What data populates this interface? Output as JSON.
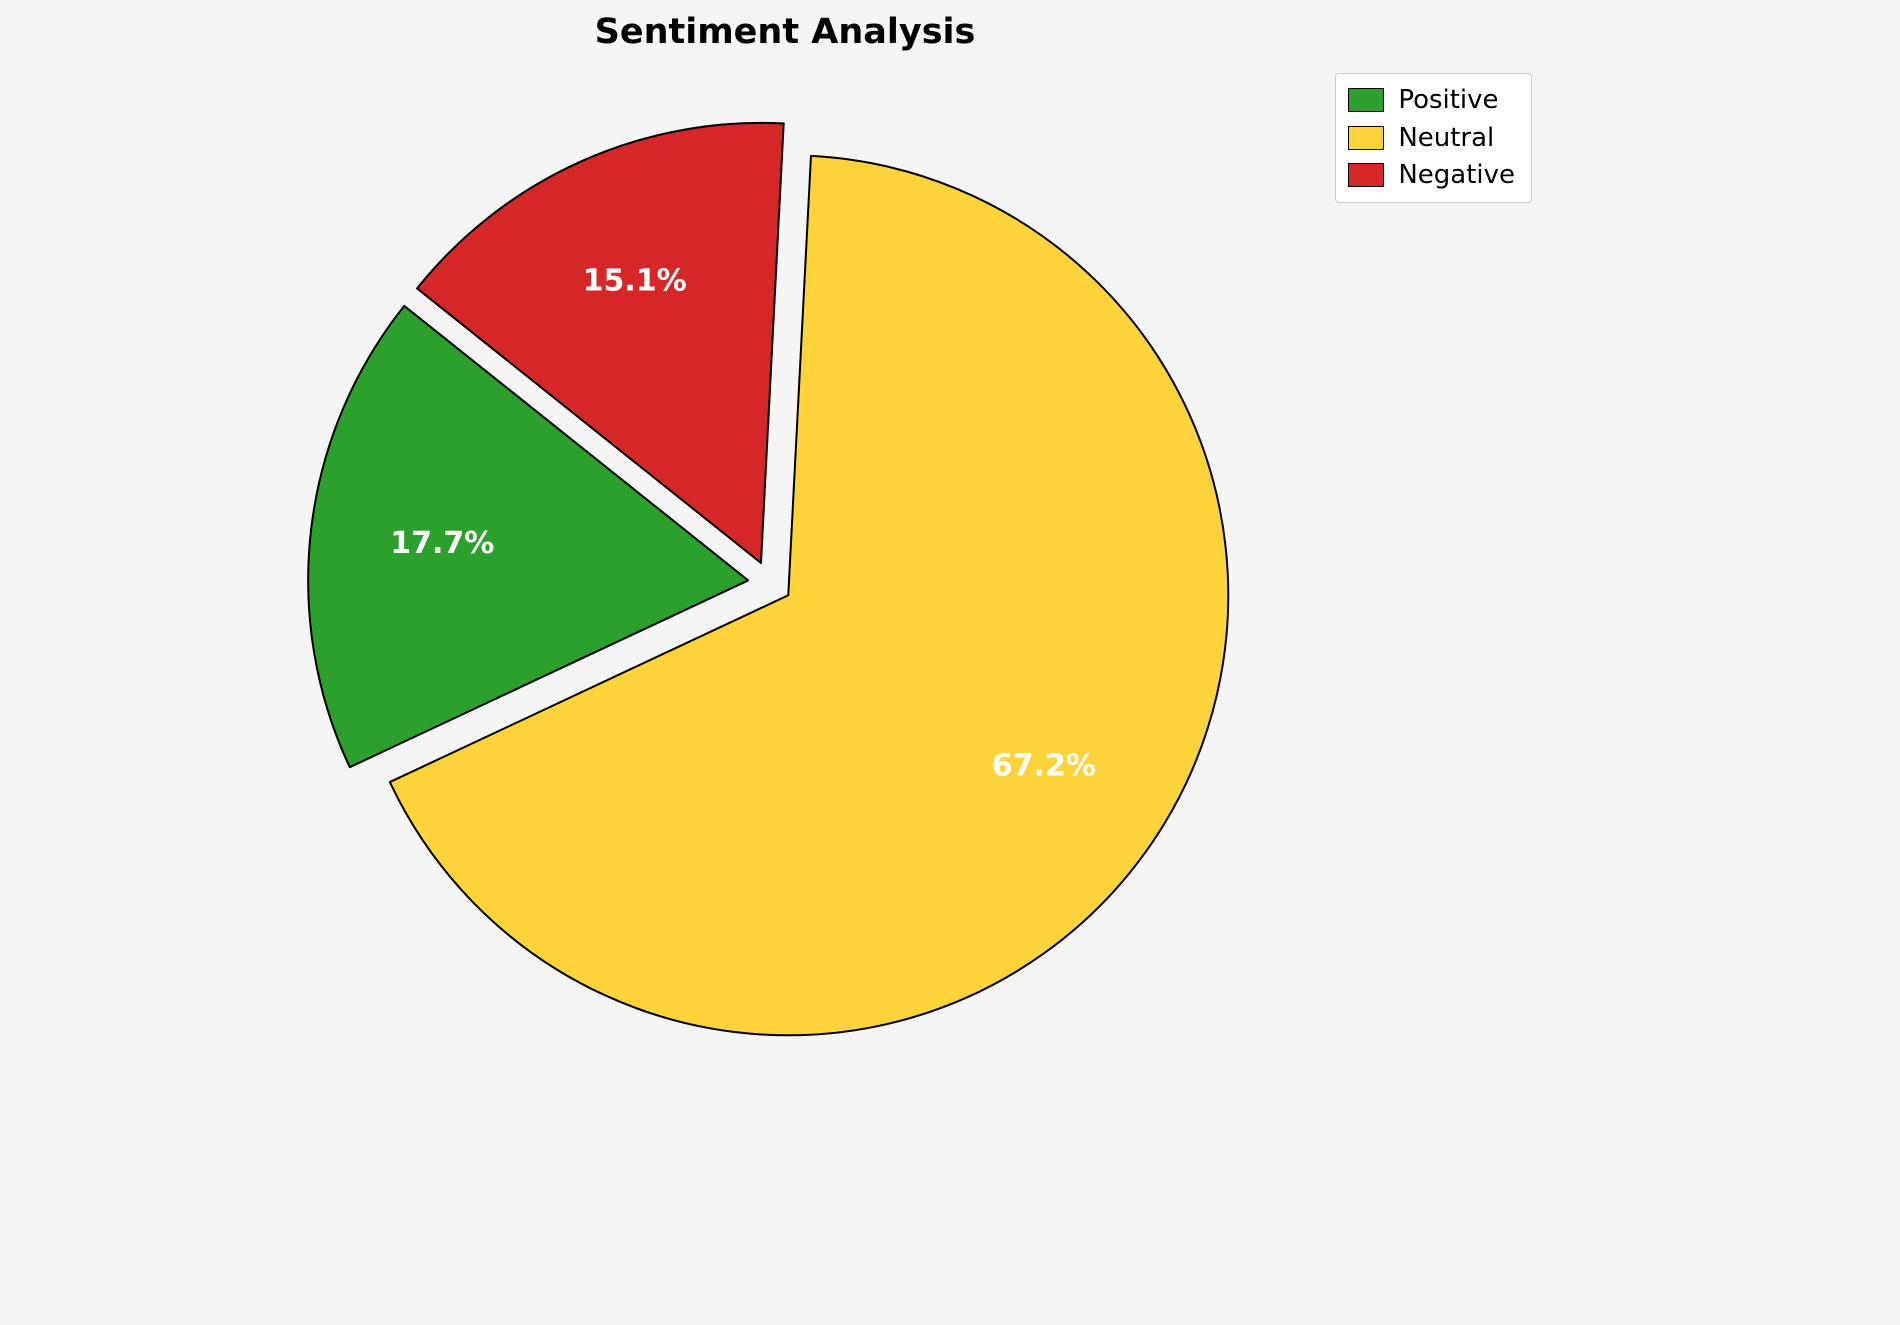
{
  "chart_data": {
    "type": "pie",
    "title": "Sentiment Analysis",
    "labels": [
      "Positive",
      "Neutral",
      "Negative"
    ],
    "values": [
      17.7,
      67.2,
      15.1
    ],
    "pct_labels": [
      "17.7%",
      "67.2%",
      "15.1%"
    ],
    "colors": [
      "#2ca02c",
      "#ffd43b",
      "#d62728"
    ],
    "background_color": "#f5f5f5",
    "edge_color": "#000000",
    "label_color": "#ffffff",
    "start_angle": 141.4,
    "counterclockwise": true,
    "explode": [
      0.05,
      0.05,
      0.05
    ],
    "pct_distance": 0.7,
    "legend_position": "upper right"
  }
}
